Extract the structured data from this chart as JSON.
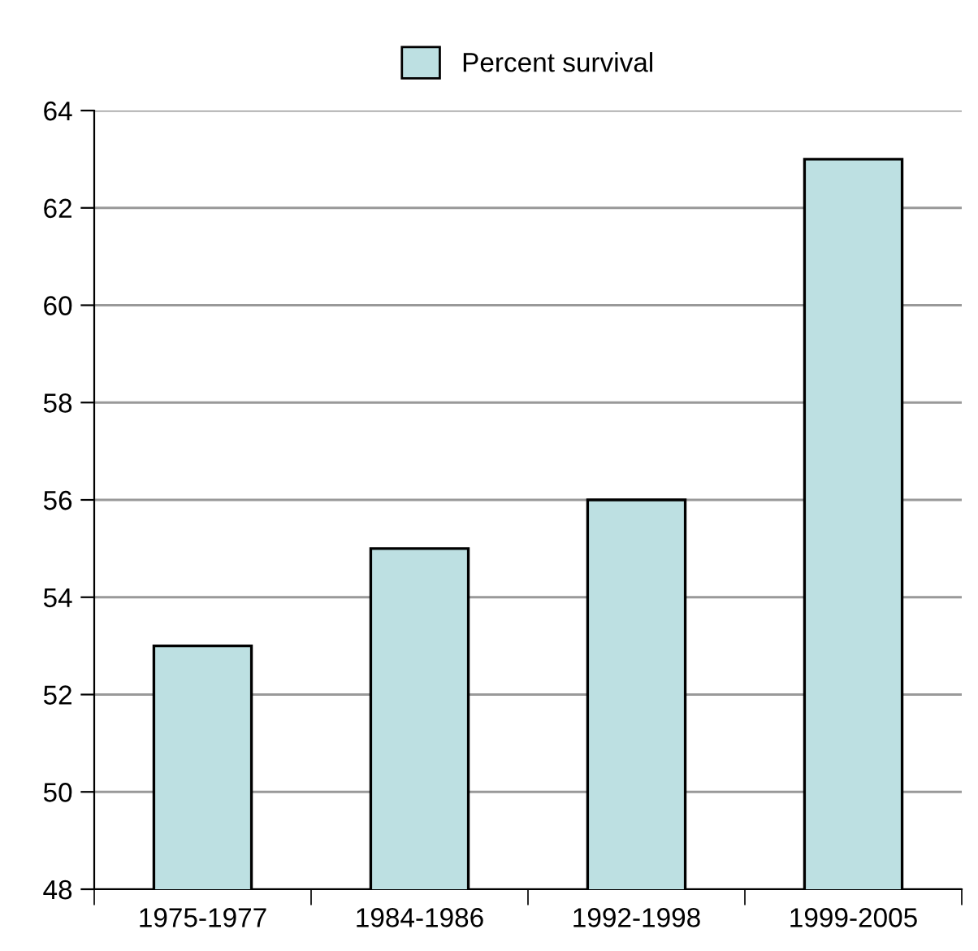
{
  "chart_data": {
    "type": "bar",
    "categories": [
      "1975-1977",
      "1984-1986",
      "1992-1998",
      "1999-2005"
    ],
    "series": [
      {
        "name": "Percent survival",
        "color": "#bde0e2",
        "values": [
          53,
          55,
          56,
          63
        ]
      }
    ],
    "ylim": [
      48,
      64
    ],
    "yticks": [
      48,
      50,
      52,
      54,
      56,
      58,
      60,
      62,
      64
    ],
    "grid": "y",
    "legend": "top"
  }
}
